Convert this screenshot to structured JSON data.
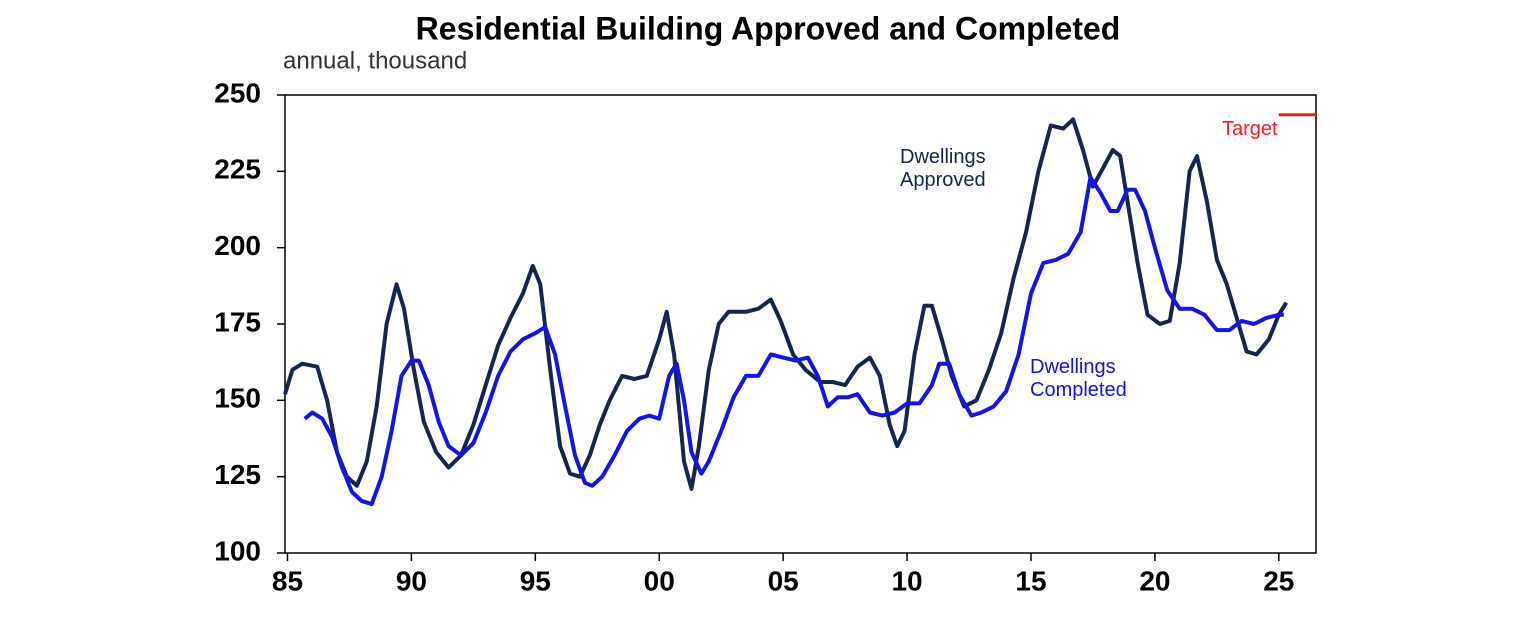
{
  "chart_data": {
    "type": "line",
    "title": "Residential Building Approved and Completed",
    "subtitle": "annual, thousand",
    "xlim": [
      1984.9,
      2026.5
    ],
    "xticks": [
      {
        "value": 1985,
        "label": "85"
      },
      {
        "value": 1990,
        "label": "90"
      },
      {
        "value": 1995,
        "label": "95"
      },
      {
        "value": 2000,
        "label": "00"
      },
      {
        "value": 2005,
        "label": "05"
      },
      {
        "value": 2010,
        "label": "10"
      },
      {
        "value": 2015,
        "label": "15"
      },
      {
        "value": 2020,
        "label": "20"
      },
      {
        "value": 2025,
        "label": "25"
      }
    ],
    "ylim": [
      100,
      250
    ],
    "yticks": [
      100,
      125,
      150,
      175,
      200,
      225,
      250
    ],
    "series": [
      {
        "name": "Dwellings Approved",
        "color": "#15254f",
        "x": [
          1984.9,
          1985.2,
          1985.6,
          1986.2,
          1986.6,
          1987,
          1987.4,
          1987.8,
          1988.2,
          1988.6,
          1989,
          1989.4,
          1989.7,
          1990.1,
          1990.5,
          1991,
          1991.5,
          1992,
          1992.5,
          1993,
          1993.5,
          1994,
          1994.5,
          1994.9,
          1995.2,
          1995.6,
          1996,
          1996.4,
          1996.8,
          1997.2,
          1997.6,
          1998,
          1998.5,
          1999,
          1999.5,
          2000,
          2000.3,
          2000.6,
          2001,
          2001.3,
          2001.6,
          2002,
          2002.4,
          2002.8,
          2003.5,
          2004,
          2004.5,
          2004.9,
          2005.4,
          2005.9,
          2006.5,
          2007,
          2007.5,
          2008,
          2008.5,
          2008.9,
          2009.3,
          2009.6,
          2009.9,
          2010.3,
          2010.7,
          2011,
          2011.4,
          2011.8,
          2012.3,
          2012.8,
          2013.3,
          2013.8,
          2014.3,
          2014.8,
          2015.3,
          2015.8,
          2016.3,
          2016.7,
          2017.1,
          2017.5,
          2017.9,
          2018.3,
          2018.6,
          2018.9,
          2019.3,
          2019.7,
          2020.2,
          2020.6,
          2021,
          2021.4,
          2021.7,
          2022.1,
          2022.5,
          2022.9,
          2023.3,
          2023.7,
          2024.1,
          2024.6,
          2025,
          2025.3
        ],
        "values": [
          152,
          160,
          162,
          161,
          150,
          133,
          125,
          122,
          130,
          148,
          175,
          188,
          180,
          160,
          143,
          133,
          128,
          132,
          142,
          155,
          168,
          177,
          185,
          194,
          188,
          160,
          135,
          126,
          125,
          132,
          142,
          150,
          158,
          157,
          158,
          170,
          179,
          165,
          130,
          121,
          135,
          160,
          175,
          179,
          179,
          180,
          183,
          176,
          165,
          160,
          156,
          156,
          155,
          161,
          164,
          158,
          142,
          135,
          140,
          165,
          181,
          181,
          170,
          158,
          148,
          150,
          160,
          172,
          190,
          205,
          225,
          240,
          239,
          242,
          232,
          220,
          226,
          232,
          230,
          215,
          195,
          178,
          175,
          176,
          195,
          225,
          230,
          215,
          196,
          188,
          177,
          166,
          165,
          170,
          178,
          182
        ]
      },
      {
        "name": "Dwellings Completed",
        "color": "#1414e6",
        "x": [
          1985.7,
          1986,
          1986.4,
          1986.8,
          1987.2,
          1987.6,
          1988,
          1988.4,
          1988.8,
          1989.2,
          1989.6,
          1990,
          1990.3,
          1990.7,
          1991.1,
          1991.5,
          1992,
          1992.5,
          1993,
          1993.5,
          1994,
          1994.5,
          1995,
          1995.4,
          1995.8,
          1996.2,
          1996.6,
          1997,
          1997.3,
          1997.7,
          1998.2,
          1998.7,
          1999.2,
          1999.6,
          2000,
          2000.4,
          2000.7,
          2001,
          2001.3,
          2001.7,
          2002,
          2002.5,
          2003,
          2003.5,
          2004,
          2004.5,
          2005,
          2005.5,
          2006,
          2006.4,
          2006.8,
          2007.2,
          2007.6,
          2008,
          2008.5,
          2009,
          2009.5,
          2010,
          2010.5,
          2011,
          2011.3,
          2011.7,
          2012.1,
          2012.6,
          2013,
          2013.5,
          2014,
          2014.5,
          2015,
          2015.5,
          2016,
          2016.5,
          2017,
          2017.4,
          2017.8,
          2018.2,
          2018.5,
          2018.9,
          2019.2,
          2019.6,
          2020,
          2020.5,
          2021,
          2021.5,
          2022,
          2022.5,
          2023,
          2023.5,
          2024,
          2024.5,
          2025,
          2025.2
        ],
        "values": [
          144,
          146,
          144,
          138,
          128,
          120,
          117,
          116,
          125,
          140,
          158,
          163,
          163,
          155,
          143,
          135,
          132,
          136,
          146,
          158,
          166,
          170,
          172,
          174,
          165,
          148,
          132,
          123,
          122,
          125,
          132,
          140,
          144,
          145,
          144,
          158,
          162,
          150,
          133,
          126,
          130,
          140,
          151,
          158,
          158,
          165,
          164,
          163,
          164,
          158,
          148,
          151,
          151,
          152,
          146,
          145,
          146,
          149,
          149,
          155,
          162,
          162,
          152,
          145,
          146,
          148,
          153,
          165,
          185,
          195,
          196,
          198,
          205,
          223,
          218,
          212,
          212,
          219,
          219,
          212,
          200,
          186,
          180,
          180,
          178,
          173,
          173,
          176,
          175,
          177,
          178,
          178
        ]
      },
      {
        "name": "Target",
        "color": "#ff1a1a",
        "x": [
          2025,
          2026.5
        ],
        "values": [
          243.5,
          243.5
        ]
      }
    ]
  }
}
